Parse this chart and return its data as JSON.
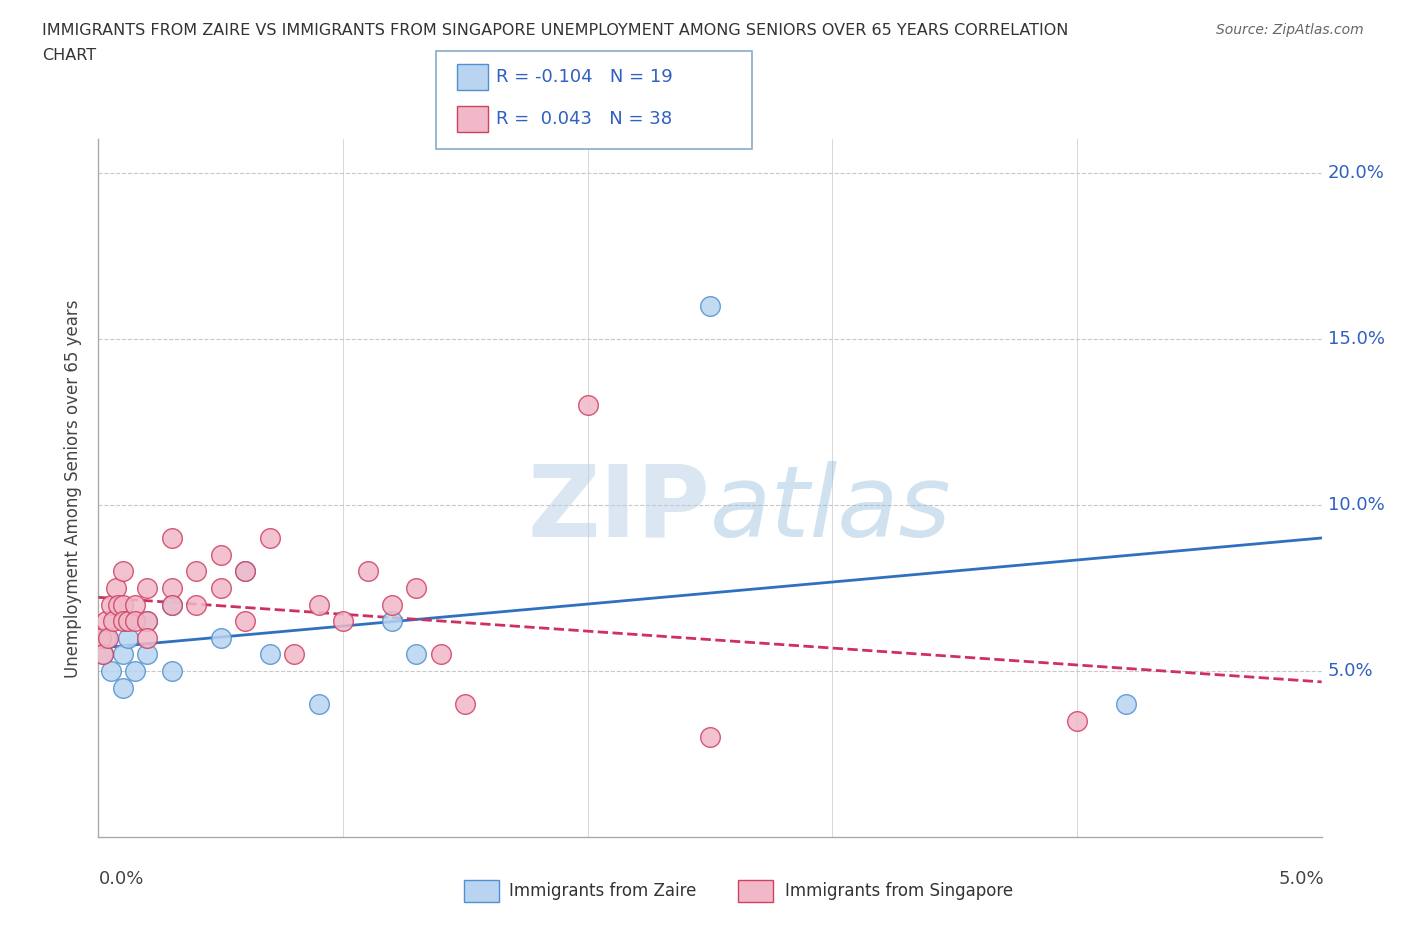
{
  "title_line1": "IMMIGRANTS FROM ZAIRE VS IMMIGRANTS FROM SINGAPORE UNEMPLOYMENT AMONG SENIORS OVER 65 YEARS CORRELATION",
  "title_line2": "CHART",
  "source": "Source: ZipAtlas.com",
  "ylabel": "Unemployment Among Seniors over 65 years",
  "zaire_R": -0.104,
  "zaire_N": 19,
  "singapore_R": 0.043,
  "singapore_N": 38,
  "zaire_color": "#b8d4f0",
  "zaire_edge_color": "#5090d0",
  "singapore_color": "#f0b8c8",
  "singapore_edge_color": "#d04060",
  "zaire_line_color": "#3070c0",
  "singapore_line_color": "#d03060",
  "legend_text_color": "#3060c0",
  "watermark_color": "#c5d8ea",
  "zaire_x": [
    0.0002,
    0.0003,
    0.0005,
    0.001,
    0.001,
    0.0012,
    0.0015,
    0.002,
    0.002,
    0.003,
    0.003,
    0.005,
    0.006,
    0.007,
    0.009,
    0.012,
    0.013,
    0.025,
    0.042
  ],
  "zaire_y": [
    0.055,
    0.06,
    0.05,
    0.055,
    0.045,
    0.06,
    0.05,
    0.065,
    0.055,
    0.07,
    0.05,
    0.06,
    0.08,
    0.055,
    0.04,
    0.065,
    0.055,
    0.16,
    0.04
  ],
  "singapore_x": [
    0.0001,
    0.0002,
    0.0003,
    0.0004,
    0.0005,
    0.0006,
    0.0007,
    0.0008,
    0.001,
    0.001,
    0.001,
    0.0012,
    0.0015,
    0.0015,
    0.002,
    0.002,
    0.002,
    0.003,
    0.003,
    0.003,
    0.004,
    0.004,
    0.005,
    0.005,
    0.006,
    0.006,
    0.007,
    0.008,
    0.009,
    0.01,
    0.011,
    0.012,
    0.013,
    0.014,
    0.015,
    0.02,
    0.025,
    0.04
  ],
  "singapore_y": [
    0.06,
    0.055,
    0.065,
    0.06,
    0.07,
    0.065,
    0.075,
    0.07,
    0.08,
    0.07,
    0.065,
    0.065,
    0.07,
    0.065,
    0.075,
    0.065,
    0.06,
    0.09,
    0.075,
    0.07,
    0.08,
    0.07,
    0.085,
    0.075,
    0.08,
    0.065,
    0.09,
    0.055,
    0.07,
    0.065,
    0.08,
    0.07,
    0.075,
    0.055,
    0.04,
    0.13,
    0.03,
    0.035
  ],
  "xlim": [
    0.0,
    0.05
  ],
  "ylim": [
    0.0,
    0.21
  ],
  "yticks": [
    0.05,
    0.1,
    0.15,
    0.2
  ],
  "ytick_labels": [
    "5.0%",
    "10.0%",
    "15.0%",
    "20.0%"
  ],
  "xtick_positions": [
    0.0,
    0.01,
    0.02,
    0.03,
    0.04,
    0.05
  ],
  "grid_color": "#c8c8c8",
  "background_color": "#ffffff"
}
